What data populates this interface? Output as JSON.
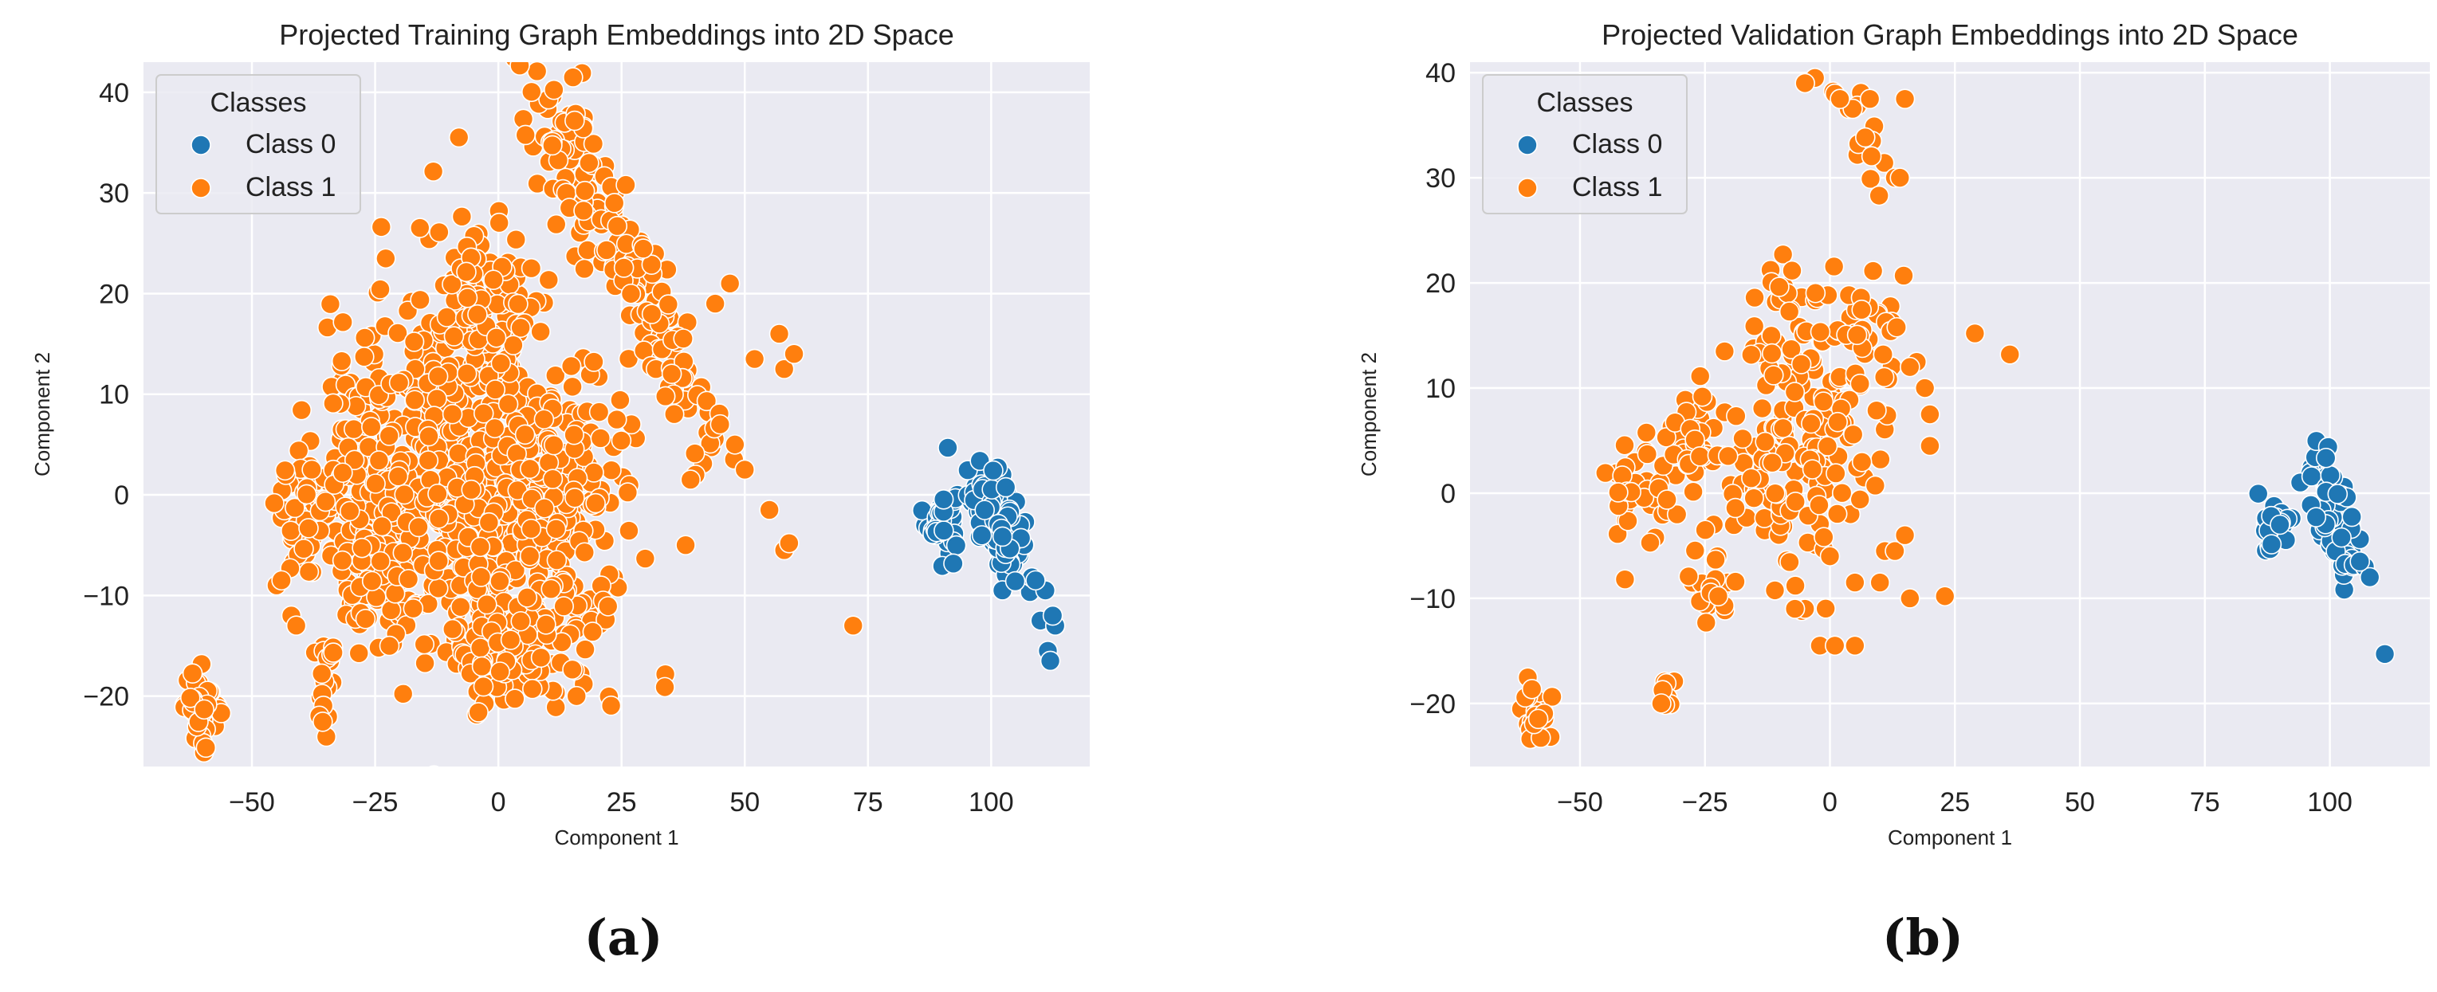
{
  "chart_data": [
    {
      "type": "scatter",
      "panel_label": "(a)",
      "title": "Projected Training Graph Embeddings into 2D Space",
      "xlabel": "Component 1",
      "ylabel": "Component 2",
      "xlim": [
        -72,
        120
      ],
      "ylim": [
        -27,
        43
      ],
      "xticks": [
        -50,
        -25,
        0,
        25,
        50,
        75,
        100
      ],
      "xtick_labels": [
        "−50",
        "−25",
        "0",
        "25",
        "50",
        "75",
        "100"
      ],
      "yticks": [
        -20,
        -10,
        0,
        10,
        20,
        30,
        40
      ],
      "ytick_labels": [
        "−20",
        "−10",
        "0",
        "10",
        "20",
        "30",
        "40"
      ],
      "grid": true,
      "legend": {
        "title": "Classes",
        "placement": "top-left",
        "entries": [
          "Class 0",
          "Class 1"
        ]
      },
      "series": [
        {
          "name": "Class 0",
          "color": "#1f77b4",
          "clusters": [
            {
              "cx": 90,
              "cy": -2.5,
              "sx": 1.6,
              "sy": 1.6,
              "n": 45
            },
            {
              "cx": 101,
              "cy": -2,
              "sx": 2.8,
              "sy": 2.2,
              "n": 110,
              "slope": -0.6
            }
          ],
          "points": [
            [
              110,
              -12.5
            ],
            [
              111.5,
              -15.5
            ],
            [
              112,
              -16.5
            ],
            [
              113,
              -13
            ],
            [
              112.5,
              -12
            ],
            [
              111,
              -9.5
            ],
            [
              109,
              -8.5
            ]
          ]
        },
        {
          "name": "Class 1",
          "color": "#ff7f0e",
          "clusters": [
            {
              "cx": -60,
              "cy": -21,
              "sx": 1.8,
              "sy": 1.8,
              "n": 45
            },
            {
              "cx": -35,
              "cy": -19,
              "sx": 1.2,
              "sy": 2.2,
              "n": 25
            },
            {
              "cx": -38,
              "cy": -2,
              "sx": 3.5,
              "sy": 3.5,
              "n": 70
            },
            {
              "cx": -27,
              "cy": 3,
              "sx": 4,
              "sy": 5,
              "n": 100
            },
            {
              "cx": -24,
              "cy": -9,
              "sx": 4,
              "sy": 3,
              "n": 70
            },
            {
              "cx": -8,
              "cy": 7,
              "sx": 9,
              "sy": 9,
              "n": 300
            },
            {
              "cx": 0,
              "cy": -4,
              "sx": 10,
              "sy": 8,
              "n": 280
            },
            {
              "cx": -2,
              "cy": 20,
              "sx": 5,
              "sy": 4,
              "n": 80
            },
            {
              "cx": 15,
              "cy": 0,
              "sx": 7,
              "sy": 6,
              "n": 120
            },
            {
              "cx": 5,
              "cy": -15,
              "sx": 8,
              "sy": 3,
              "n": 90
            },
            {
              "cx": 15,
              "cy": 33,
              "sx": 5,
              "sy": 3.5,
              "n": 90,
              "slope": -0.8
            },
            {
              "cx": 28,
              "cy": 22,
              "sx": 4,
              "sy": 3,
              "n": 50,
              "slope": -0.8
            },
            {
              "cx": 38,
              "cy": 11,
              "sx": 4,
              "sy": 3,
              "n": 45,
              "slope": -0.8
            }
          ],
          "points": [
            [
              -45,
              -9
            ],
            [
              -42,
              -12
            ],
            [
              -41,
              -13
            ],
            [
              -44,
              -8.5
            ],
            [
              38,
              -5
            ],
            [
              40,
              2
            ],
            [
              45,
              7
            ],
            [
              48,
              5
            ],
            [
              50,
              2.5
            ],
            [
              55,
              -1.5
            ],
            [
              58,
              -5.5
            ],
            [
              59,
              -4.8
            ],
            [
              72,
              -13
            ],
            [
              58,
              12.5
            ],
            [
              60,
              14
            ],
            [
              57,
              16
            ],
            [
              52,
              13.5
            ],
            [
              47,
              21
            ],
            [
              44,
              19
            ],
            [
              39,
              1.5
            ]
          ]
        }
      ]
    },
    {
      "type": "scatter",
      "panel_label": "(b)",
      "title": "Projected Validation Graph Embeddings into 2D Space",
      "xlabel": "Component 1",
      "ylabel": "Component 2",
      "xlim": [
        -72,
        120
      ],
      "ylim": [
        -26,
        41
      ],
      "xticks": [
        -50,
        -25,
        0,
        25,
        50,
        75,
        100
      ],
      "xtick_labels": [
        "−50",
        "−25",
        "0",
        "25",
        "50",
        "75",
        "100"
      ],
      "yticks": [
        -20,
        -10,
        0,
        10,
        20,
        30,
        40
      ],
      "ytick_labels": [
        "−20",
        "−10",
        "0",
        "10",
        "20",
        "30",
        "40"
      ],
      "grid": true,
      "legend": {
        "title": "Classes",
        "placement": "top-left",
        "entries": [
          "Class 0",
          "Class 1"
        ]
      },
      "series": [
        {
          "name": "Class 0",
          "color": "#1f77b4",
          "clusters": [
            {
              "cx": 89,
              "cy": -3.5,
              "sx": 1.5,
              "sy": 1.2,
              "n": 25
            },
            {
              "cx": 101,
              "cy": -2.5,
              "sx": 2.5,
              "sy": 2.5,
              "n": 70,
              "slope": -0.8
            }
          ],
          "points": [
            [
              111,
              -15.3
            ],
            [
              107,
              -7
            ],
            [
              108,
              -8
            ],
            [
              106,
              -6.5
            ]
          ]
        },
        {
          "name": "Class 1",
          "color": "#ff7f0e",
          "clusters": [
            {
              "cx": -58,
              "cy": -21,
              "sx": 1.8,
              "sy": 1.5,
              "n": 20
            },
            {
              "cx": -33,
              "cy": -18.5,
              "sx": 0.8,
              "sy": 1,
              "n": 8
            },
            {
              "cx": -38,
              "cy": 0,
              "sx": 3,
              "sy": 2.5,
              "n": 35
            },
            {
              "cx": -28,
              "cy": 5,
              "sx": 3,
              "sy": 3,
              "n": 35
            },
            {
              "cx": -24,
              "cy": -10,
              "sx": 2,
              "sy": 2,
              "n": 22
            },
            {
              "cx": -12,
              "cy": 2,
              "sx": 7,
              "sy": 5,
              "n": 90
            },
            {
              "cx": -8,
              "cy": 14,
              "sx": 5,
              "sy": 4,
              "n": 50
            },
            {
              "cx": 0,
              "cy": 5,
              "sx": 6,
              "sy": 6,
              "n": 70
            },
            {
              "cx": 8,
              "cy": 15,
              "sx": 4,
              "sy": 3,
              "n": 30
            },
            {
              "cx": 7,
              "cy": 33,
              "sx": 3,
              "sy": 2.5,
              "n": 14,
              "slope": -0.9
            }
          ],
          "points": [
            [
              -41,
              -8.2
            ],
            [
              -2,
              -14.5
            ],
            [
              1,
              -14.5
            ],
            [
              5,
              -14.5
            ],
            [
              -5,
              -11
            ],
            [
              -7,
              -11
            ],
            [
              0,
              -6
            ],
            [
              5,
              -8.5
            ],
            [
              10,
              -8.5
            ],
            [
              11,
              -5.5
            ],
            [
              13,
              -5.5
            ],
            [
              15,
              -4
            ],
            [
              16,
              -10
            ],
            [
              23,
              -9.8
            ],
            [
              20,
              4.5
            ],
            [
              20,
              7.5
            ],
            [
              19,
              10
            ],
            [
              16,
              12
            ],
            [
              29,
              15.2
            ],
            [
              36,
              13.2
            ],
            [
              15,
              37.5
            ],
            [
              -3,
              39.5
            ],
            [
              -5,
              39
            ],
            [
              1,
              38
            ],
            [
              2,
              37.5
            ],
            [
              8,
              37.5
            ],
            [
              13,
              30
            ],
            [
              14,
              30
            ]
          ]
        }
      ]
    }
  ]
}
